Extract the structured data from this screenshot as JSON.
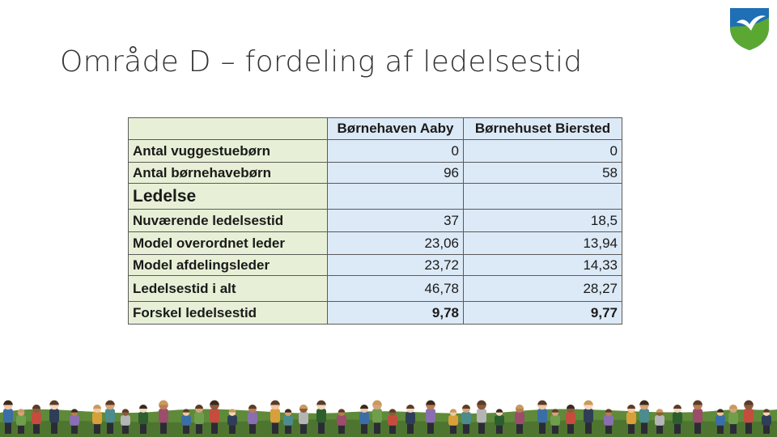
{
  "slide": {
    "title": "Område D – fordeling af ledelsestid"
  },
  "table": {
    "columns": [
      "Børnehaven Aaby",
      "Børnehuset Biersted"
    ],
    "rows": [
      {
        "label": "Antal vuggestuebørn",
        "values": [
          "0",
          "0"
        ],
        "bold": false
      },
      {
        "label": "Antal børnehavebørn",
        "values": [
          "96",
          "58"
        ],
        "bold": false
      },
      {
        "label": "Ledelse",
        "values": [
          "",
          ""
        ],
        "bold": false
      },
      {
        "label": "Nuværende ledelsestid",
        "values": [
          "37",
          "18,5"
        ],
        "bold": false
      },
      {
        "label": "Model overordnet leder",
        "values": [
          "23,06",
          "13,94"
        ],
        "bold": false
      },
      {
        "label": "Model afdelingsleder",
        "values": [
          "23,72",
          "14,33"
        ],
        "bold": false
      },
      {
        "label": "Ledelsestid i alt",
        "values": [
          "46,78",
          "28,27"
        ],
        "bold": false
      },
      {
        "label": "Forskel ledelsestid",
        "values": [
          "9,78",
          "9,77"
        ],
        "bold": true
      }
    ]
  },
  "decor": {
    "logo_icon": "seagull-shield-icon",
    "footer_image": "children-row-illustration",
    "colors": {
      "label_bg": "#e7f0d6",
      "value_bg": "#dce9f6",
      "logo_green": "#5aa832",
      "logo_blue": "#1f6fb5",
      "hill_green": "#5f8a3a"
    }
  }
}
